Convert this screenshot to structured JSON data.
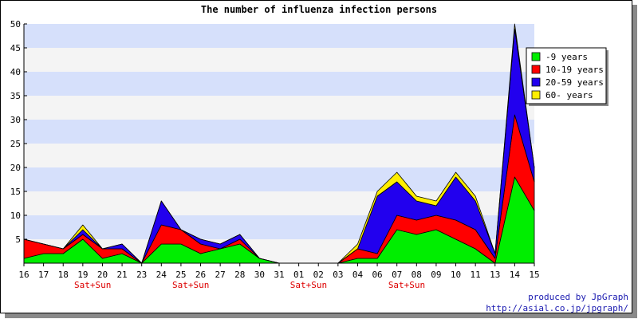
{
  "chart_data": {
    "type": "area",
    "title": "The number of influenza infection persons",
    "stacked": true,
    "ylim": [
      0,
      50
    ],
    "yticks": [
      5,
      10,
      15,
      20,
      25,
      30,
      35,
      40,
      45,
      50
    ],
    "categories": [
      "16",
      "17",
      "18",
      "19",
      "20",
      "21",
      "23",
      "24",
      "25",
      "26",
      "27",
      "28",
      "30",
      "31",
      "01",
      "02",
      "03",
      "04",
      "06",
      "07",
      "08",
      "09",
      "10",
      "11",
      "13",
      "14",
      "15"
    ],
    "weekend_labels": [
      {
        "after": "19",
        "text": "Sat+Sun"
      },
      {
        "after": "25",
        "text": "Sat+Sun"
      },
      {
        "after": "01",
        "text": "Sat+Sun"
      },
      {
        "after": "07",
        "text": "Sat+Sun"
      }
    ],
    "series": [
      {
        "name": "-9 years",
        "color": "#00ee00",
        "values": [
          1,
          2,
          2,
          5,
          1,
          2,
          0,
          4,
          4,
          2,
          3,
          4,
          1,
          0,
          0,
          0,
          0,
          1,
          1,
          7,
          6,
          7,
          5,
          3,
          0,
          18,
          11
        ]
      },
      {
        "name": "10-19 years",
        "color": "#ff0000",
        "values": [
          4,
          2,
          1,
          1,
          2,
          1,
          0,
          4,
          3,
          2,
          0,
          1,
          0,
          0,
          0,
          0,
          0,
          2,
          1,
          3,
          3,
          3,
          4,
          4,
          1,
          13,
          6
        ]
      },
      {
        "name": "20-59 years",
        "color": "#2200ee",
        "values": [
          0,
          0,
          0,
          1,
          0,
          1,
          0,
          5,
          0,
          1,
          1,
          1,
          0,
          0,
          0,
          0,
          0,
          0,
          12,
          7,
          4,
          2,
          9,
          6,
          1,
          18,
          3
        ]
      },
      {
        "name": "60- years",
        "color": "#ffee00",
        "values": [
          0,
          0,
          0,
          1,
          0,
          0,
          0,
          0,
          0,
          0,
          0,
          0,
          0,
          0,
          0,
          0,
          0,
          1,
          1,
          2,
          1,
          1,
          1,
          1,
          0,
          1,
          0
        ]
      }
    ],
    "legend_position": "right",
    "grid": "horizontal alternating bands"
  },
  "footer": {
    "credit_line1": "produced by JpGraph",
    "credit_line2": "http://asial.co.jp/jpgraph/"
  }
}
